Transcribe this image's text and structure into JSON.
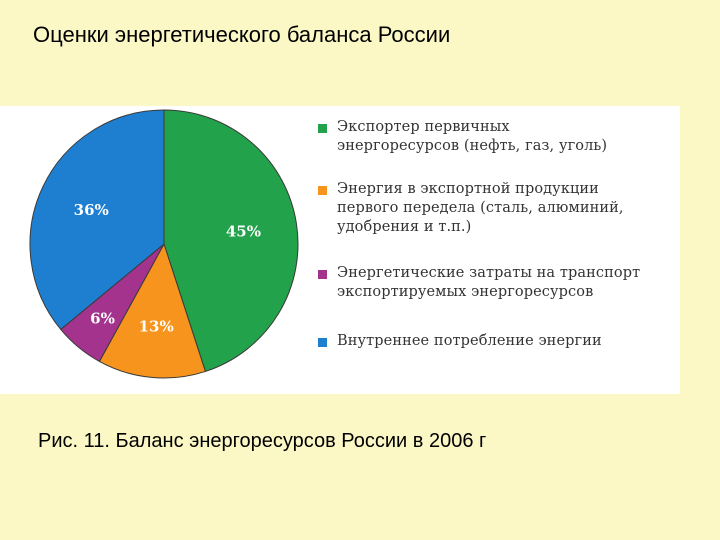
{
  "slide": {
    "title": "Оценки энергетического баланса России",
    "caption": "Рис. 11. Баланс энергоресурсов России в 2006 г"
  },
  "chart_data": {
    "type": "pie",
    "title": "",
    "slices": [
      {
        "label": "Экспортер первичных энергоресурсов (нефть, газ, уголь)",
        "value": 45,
        "value_label": "45%",
        "color": "#22a24a"
      },
      {
        "label": "Энергия в экспортной продукции первого передела (сталь, алюминий, удобрения и т.п.)",
        "value": 13,
        "value_label": "13%",
        "color": "#f7941d"
      },
      {
        "label": "Энергетические затраты на транспорт экспортируемых энергоресурсов",
        "value": 6,
        "value_label": "6%",
        "color": "#a3338d"
      },
      {
        "label": "Внутреннее потребление энергии",
        "value": 36,
        "value_label": "36%",
        "color": "#1e7fd1"
      }
    ],
    "legend": {
      "placement": "right",
      "items": [
        {
          "lines": [
            "Экспортер первичных",
            "энергоресурсов (нефть, газ, уголь)"
          ],
          "color": "#22a24a"
        },
        {
          "lines": [
            "Энергия в экспортной продукции",
            "первого передела (сталь, алюминий,",
            "удобрения и т.п.)"
          ],
          "color": "#f7941d"
        },
        {
          "lines": [
            "Энергетические затраты на транспорт",
            "экспортируемых энергоресурсов"
          ],
          "color": "#a3338d"
        },
        {
          "lines": [
            "Внутреннее потребление энергии"
          ],
          "color": "#1e7fd1"
        }
      ]
    }
  }
}
